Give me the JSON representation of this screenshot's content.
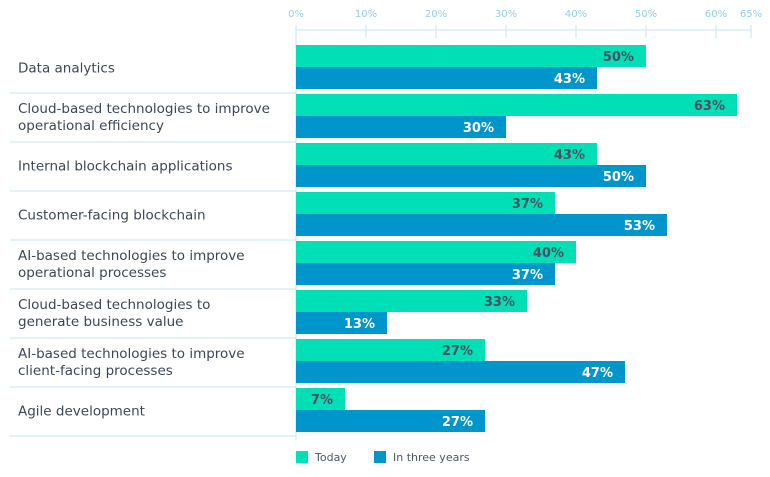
{
  "chart_data": {
    "type": "bar",
    "orientation": "horizontal",
    "categories": [
      [
        "Data analytics"
      ],
      [
        "Cloud-based technologies to improve",
        "operational efficiency"
      ],
      [
        "Internal blockchain applications"
      ],
      [
        "Customer-facing blockchain"
      ],
      [
        "AI-based technologies to improve",
        "operational processes"
      ],
      [
        "Cloud-based technologies to",
        "generate business value"
      ],
      [
        "AI-based technologies to improve",
        "client-facing processes"
      ],
      [
        "Agile development"
      ]
    ],
    "series": [
      {
        "name": "Today",
        "color": "#00dfb5",
        "label_color": "#4b5060",
        "values": [
          50,
          63,
          43,
          37,
          40,
          33,
          27,
          7
        ]
      },
      {
        "name": "In three years",
        "color": "#0096cc",
        "label_color": "#ffffff",
        "values": [
          43,
          30,
          50,
          53,
          37,
          13,
          47,
          27
        ]
      }
    ],
    "xticks": [
      0,
      10,
      20,
      30,
      40,
      50,
      60,
      65
    ],
    "tick_suffix": "%",
    "value_suffix": "%",
    "xlim": [
      0,
      65
    ],
    "axis_position": "top",
    "legend": "bottom",
    "grid": false
  }
}
